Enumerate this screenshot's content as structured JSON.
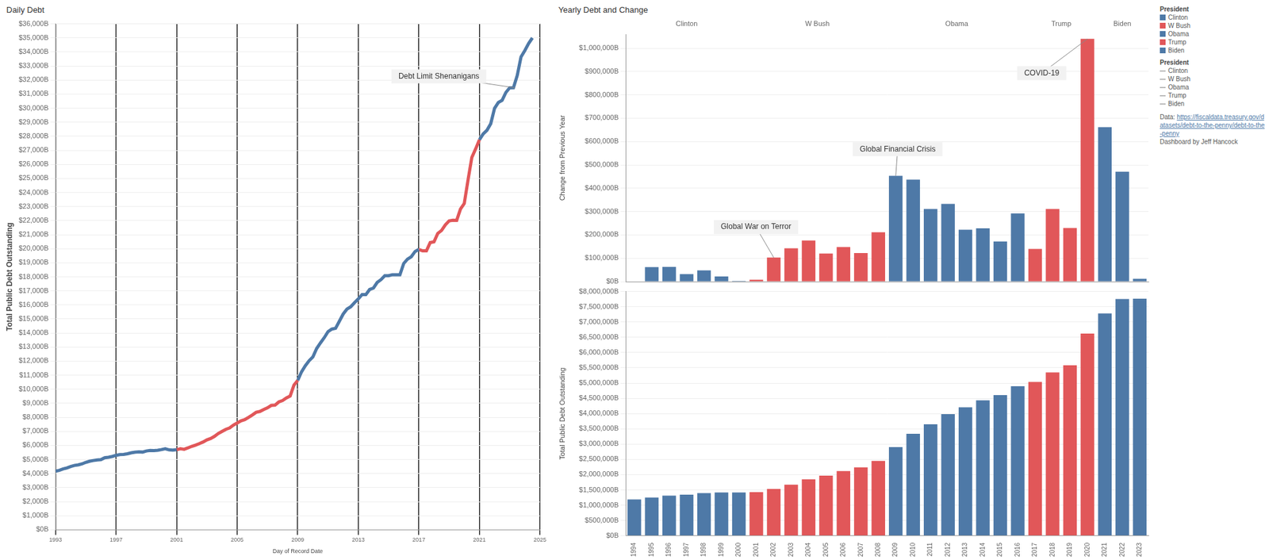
{
  "dashboard": {
    "title": "Yearly Debt and Change",
    "legend_title": "President",
    "source_label": "Data:",
    "source_url": "https://fiscaldata.treasury.gov/datasets/debt-to-the-penny/debt-to-the-penny",
    "credit": "Dashboard by Jeff Hancock"
  },
  "chart_data": [
    {
      "type": "line",
      "title": "Daily Debt",
      "x_label": "Day of Record Date",
      "y_label": "Total Public Debt Outstanding",
      "xlim": [
        1993,
        2025
      ],
      "xticks": [
        1993,
        1997,
        2001,
        2005,
        2009,
        2013,
        2017,
        2021,
        2025
      ],
      "ylim": [
        0,
        36000
      ],
      "yticks": [
        {
          "value": 0,
          "label": "$0B"
        },
        {
          "value": 1000,
          "label": "$1,000B"
        },
        {
          "value": 2000,
          "label": "$2,000B"
        },
        {
          "value": 3000,
          "label": "$3,000B"
        },
        {
          "value": 4000,
          "label": "$4,000B"
        },
        {
          "value": 5000,
          "label": "$5,000B"
        },
        {
          "value": 6000,
          "label": "$6,000B"
        },
        {
          "value": 7000,
          "label": "$7,000B"
        },
        {
          "value": 8000,
          "label": "$8,000B"
        },
        {
          "value": 9000,
          "label": "$9,000B"
        },
        {
          "value": 10000,
          "label": "$10,000B"
        },
        {
          "value": 11000,
          "label": "$11,000B"
        },
        {
          "value": 12000,
          "label": "$12,000B"
        },
        {
          "value": 13000,
          "label": "$13,000B"
        },
        {
          "value": 14000,
          "label": "$14,000B"
        },
        {
          "value": 15000,
          "label": "$15,000B"
        },
        {
          "value": 16000,
          "label": "$16,000B"
        },
        {
          "value": 17000,
          "label": "$17,000B"
        },
        {
          "value": 18000,
          "label": "$18,000B"
        },
        {
          "value": 19000,
          "label": "$19,000B"
        },
        {
          "value": 20000,
          "label": "$20,000B"
        },
        {
          "value": 21000,
          "label": "$21,000B"
        },
        {
          "value": 22000,
          "label": "$22,000B"
        },
        {
          "value": 23000,
          "label": "$23,000B"
        },
        {
          "value": 24000,
          "label": "$24,000B"
        },
        {
          "value": 25000,
          "label": "$25,000B"
        },
        {
          "value": 26000,
          "label": "$26,000B"
        },
        {
          "value": 27000,
          "label": "$27,000B"
        },
        {
          "value": 28000,
          "label": "$28,000B"
        },
        {
          "value": 29000,
          "label": "$29,000B"
        },
        {
          "value": 30000,
          "label": "$30,000B"
        },
        {
          "value": 31000,
          "label": "$31,000B"
        },
        {
          "value": 32000,
          "label": "$32,000B"
        },
        {
          "value": 33000,
          "label": "$33,000B"
        },
        {
          "value": 34000,
          "label": "$34,000B"
        },
        {
          "value": 35000,
          "label": "$35,000B"
        },
        {
          "value": 36000,
          "label": "$36,000B"
        }
      ],
      "grid": true,
      "legend": "right",
      "series": [
        {
          "name": "Clinton",
          "color": "#4e79a7",
          "x": [
            1993,
            1993.25,
            1993.5,
            1993.75,
            1994,
            1994.25,
            1994.5,
            1994.75,
            1995,
            1995.25,
            1995.5,
            1995.75,
            1996,
            1996.25,
            1996.5,
            1996.75,
            1997,
            1997.25,
            1997.5,
            1997.75,
            1998,
            1998.25,
            1998.5,
            1998.75,
            1999,
            1999.25,
            1999.5,
            1999.75,
            2000,
            2000.25,
            2000.5,
            2000.75,
            2001
          ],
          "values": [
            4170,
            4230,
            4330,
            4400,
            4500,
            4580,
            4620,
            4690,
            4800,
            4880,
            4930,
            4970,
            4990,
            5130,
            5160,
            5220,
            5300,
            5350,
            5370,
            5410,
            5480,
            5520,
            5550,
            5530,
            5610,
            5650,
            5640,
            5660,
            5710,
            5770,
            5690,
            5670,
            5700
          ]
        },
        {
          "name": "W Bush",
          "color": "#e15759",
          "x": [
            2001,
            2001.25,
            2001.5,
            2001.75,
            2002,
            2002.25,
            2002.5,
            2002.75,
            2003,
            2003.25,
            2003.5,
            2003.75,
            2004,
            2004.25,
            2004.5,
            2004.75,
            2005,
            2005.25,
            2005.5,
            2005.75,
            2006,
            2006.25,
            2006.5,
            2006.75,
            2007,
            2007.25,
            2007.5,
            2007.75,
            2008,
            2008.25,
            2008.5,
            2008.75,
            2009
          ],
          "values": [
            5700,
            5770,
            5730,
            5830,
            5940,
            6030,
            6130,
            6250,
            6400,
            6500,
            6650,
            6850,
            7000,
            7150,
            7250,
            7450,
            7600,
            7750,
            7840,
            8000,
            8170,
            8360,
            8420,
            8560,
            8680,
            8850,
            8870,
            9100,
            9200,
            9380,
            9520,
            10300,
            10630
          ]
        },
        {
          "name": "Obama",
          "color": "#4e79a7",
          "x": [
            2009,
            2009.25,
            2009.5,
            2009.75,
            2010,
            2010.25,
            2010.5,
            2010.75,
            2011,
            2011.25,
            2011.5,
            2011.75,
            2012,
            2012.25,
            2012.5,
            2012.75,
            2013,
            2013.25,
            2013.5,
            2013.75,
            2014,
            2014.25,
            2014.5,
            2014.75,
            2015,
            2015.25,
            2015.5,
            2015.75,
            2016,
            2016.25,
            2016.5,
            2016.75,
            2017
          ],
          "values": [
            10630,
            11240,
            11670,
            12030,
            12300,
            12900,
            13300,
            13670,
            14100,
            14280,
            14340,
            14840,
            15350,
            15700,
            15870,
            16160,
            16430,
            16740,
            16740,
            17100,
            17200,
            17600,
            17800,
            18080,
            18080,
            18150,
            18150,
            18150,
            18950,
            19260,
            19430,
            19800,
            19950
          ]
        },
        {
          "name": "Trump",
          "color": "#e15759",
          "x": [
            2017,
            2017.25,
            2017.5,
            2017.75,
            2018,
            2018.25,
            2018.5,
            2018.75,
            2019,
            2019.25,
            2019.5,
            2019.75,
            2020,
            2020.25,
            2020.5,
            2020.75,
            2021
          ],
          "values": [
            19950,
            19850,
            19850,
            20440,
            20490,
            21090,
            21300,
            21700,
            21980,
            22030,
            22020,
            22820,
            23220,
            24900,
            26500,
            27100,
            27750
          ]
        },
        {
          "name": "Biden",
          "color": "#4e79a7",
          "x": [
            2021,
            2021.25,
            2021.5,
            2021.75,
            2022,
            2022.25,
            2022.5,
            2022.75,
            2023,
            2023.25,
            2023.5,
            2023.75,
            2024,
            2024.25,
            2024.5
          ],
          "values": [
            27750,
            28170,
            28430,
            28900,
            29990,
            30400,
            30560,
            31120,
            31450,
            31460,
            32330,
            33650,
            34100,
            34600,
            35000
          ]
        }
      ],
      "annotations": [
        {
          "text": "Debt Limit Shenanigans",
          "x": 2023.35,
          "y": 31450
        }
      ]
    },
    {
      "type": "bar",
      "y_label": "Change from Previous Year",
      "categories": [
        "1994",
        "1995",
        "1996",
        "1997",
        "1998",
        "1999",
        "2000",
        "2001",
        "2002",
        "2003",
        "2004",
        "2005",
        "2006",
        "2007",
        "2008",
        "2009",
        "2010",
        "2011",
        "2012",
        "2013",
        "2014",
        "2015",
        "2016",
        "2017",
        "2018",
        "2019",
        "2020",
        "2021",
        "2022",
        "2023"
      ],
      "values": [
        null,
        62000,
        63000,
        32000,
        48000,
        22000,
        3000,
        8000,
        103000,
        143000,
        176000,
        120000,
        148000,
        122000,
        211000,
        453000,
        437000,
        311000,
        333000,
        222000,
        228000,
        172000,
        292000,
        140000,
        311000,
        230000,
        1040000,
        662000,
        471000,
        12000
      ],
      "colors": [
        "#4e79a7",
        "#4e79a7",
        "#4e79a7",
        "#4e79a7",
        "#4e79a7",
        "#4e79a7",
        "#4e79a7",
        "#e15759",
        "#e15759",
        "#e15759",
        "#e15759",
        "#e15759",
        "#e15759",
        "#e15759",
        "#e15759",
        "#4e79a7",
        "#4e79a7",
        "#4e79a7",
        "#4e79a7",
        "#4e79a7",
        "#4e79a7",
        "#4e79a7",
        "#4e79a7",
        "#e15759",
        "#e15759",
        "#e15759",
        "#e15759",
        "#4e79a7",
        "#4e79a7",
        "#4e79a7"
      ],
      "ylim": [
        0,
        1060000
      ],
      "yticks": [
        {
          "value": 0,
          "label": "$0B"
        },
        {
          "value": 100000,
          "label": "$100,000B"
        },
        {
          "value": 200000,
          "label": "$200,000B"
        },
        {
          "value": 300000,
          "label": "$300,000B"
        },
        {
          "value": 400000,
          "label": "$400,000B"
        },
        {
          "value": 500000,
          "label": "$500,000B"
        },
        {
          "value": 600000,
          "label": "$600,000B"
        },
        {
          "value": 700000,
          "label": "$700,000B"
        },
        {
          "value": 800000,
          "label": "$800,000B"
        },
        {
          "value": 900000,
          "label": "$900,000B"
        },
        {
          "value": 1000000,
          "label": "$1,000,000B"
        }
      ],
      "grid": true,
      "tick_labels": "y",
      "group_labels": [
        {
          "label": "Clinton",
          "from": "1994",
          "to": "2000"
        },
        {
          "label": "W Bush",
          "from": "2001",
          "to": "2008"
        },
        {
          "label": "Obama",
          "from": "2009",
          "to": "2016"
        },
        {
          "label": "Trump",
          "from": "2017",
          "to": "2020"
        },
        {
          "label": "Biden",
          "from": "2021",
          "to": "2023"
        }
      ],
      "annotations": [
        {
          "text": "Global War on Terror",
          "category": "2002",
          "value": 103000
        },
        {
          "text": "Global Financial Crisis",
          "category": "2009",
          "value": 453000
        },
        {
          "text": "COVID-19",
          "category": "2020",
          "value": 1040000
        }
      ]
    },
    {
      "type": "bar",
      "y_label": "Total Public Debt Outstanding",
      "categories": [
        "1994",
        "1995",
        "1996",
        "1997",
        "1998",
        "1999",
        "2000",
        "2001",
        "2002",
        "2003",
        "2004",
        "2005",
        "2006",
        "2007",
        "2008",
        "2009",
        "2010",
        "2011",
        "2012",
        "2013",
        "2014",
        "2015",
        "2016",
        "2017",
        "2018",
        "2019",
        "2020",
        "2021",
        "2022",
        "2023"
      ],
      "values": [
        1190000,
        1252000,
        1315000,
        1347000,
        1395000,
        1417000,
        1420000,
        1428000,
        1531000,
        1674000,
        1850000,
        1970000,
        2118000,
        2240000,
        2451000,
        2904000,
        3341000,
        3652000,
        3985000,
        4207000,
        4435000,
        4607000,
        4899000,
        5039000,
        5350000,
        5580000,
        6620000,
        7282000,
        7753000,
        7765000
      ],
      "colors": [
        "#4e79a7",
        "#4e79a7",
        "#4e79a7",
        "#4e79a7",
        "#4e79a7",
        "#4e79a7",
        "#4e79a7",
        "#e15759",
        "#e15759",
        "#e15759",
        "#e15759",
        "#e15759",
        "#e15759",
        "#e15759",
        "#e15759",
        "#4e79a7",
        "#4e79a7",
        "#4e79a7",
        "#4e79a7",
        "#4e79a7",
        "#4e79a7",
        "#4e79a7",
        "#4e79a7",
        "#e15759",
        "#e15759",
        "#e15759",
        "#e15759",
        "#4e79a7",
        "#4e79a7",
        "#4e79a7"
      ],
      "ylim": [
        0,
        8000000
      ],
      "yticks": [
        {
          "value": 0,
          "label": "$0B"
        },
        {
          "value": 500000,
          "label": "$500,000B"
        },
        {
          "value": 1000000,
          "label": "$1,000,000B"
        },
        {
          "value": 1500000,
          "label": "$1,500,000B"
        },
        {
          "value": 2000000,
          "label": "$2,000,000B"
        },
        {
          "value": 2500000,
          "label": "$2,500,000B"
        },
        {
          "value": 3000000,
          "label": "$3,000,000B"
        },
        {
          "value": 3500000,
          "label": "$3,500,000B"
        },
        {
          "value": 4000000,
          "label": "$4,000,000B"
        },
        {
          "value": 4500000,
          "label": "$4,500,000B"
        },
        {
          "value": 5000000,
          "label": "$5,000,000B"
        },
        {
          "value": 5500000,
          "label": "$5,500,000B"
        },
        {
          "value": 6000000,
          "label": "$6,000,000B"
        },
        {
          "value": 6500000,
          "label": "$6,500,000B"
        },
        {
          "value": 7000000,
          "label": "$7,000,000B"
        },
        {
          "value": 7500000,
          "label": "$7,500,000B"
        },
        {
          "value": 8000000,
          "label": "$8,000,000B"
        }
      ],
      "grid": true
    }
  ]
}
